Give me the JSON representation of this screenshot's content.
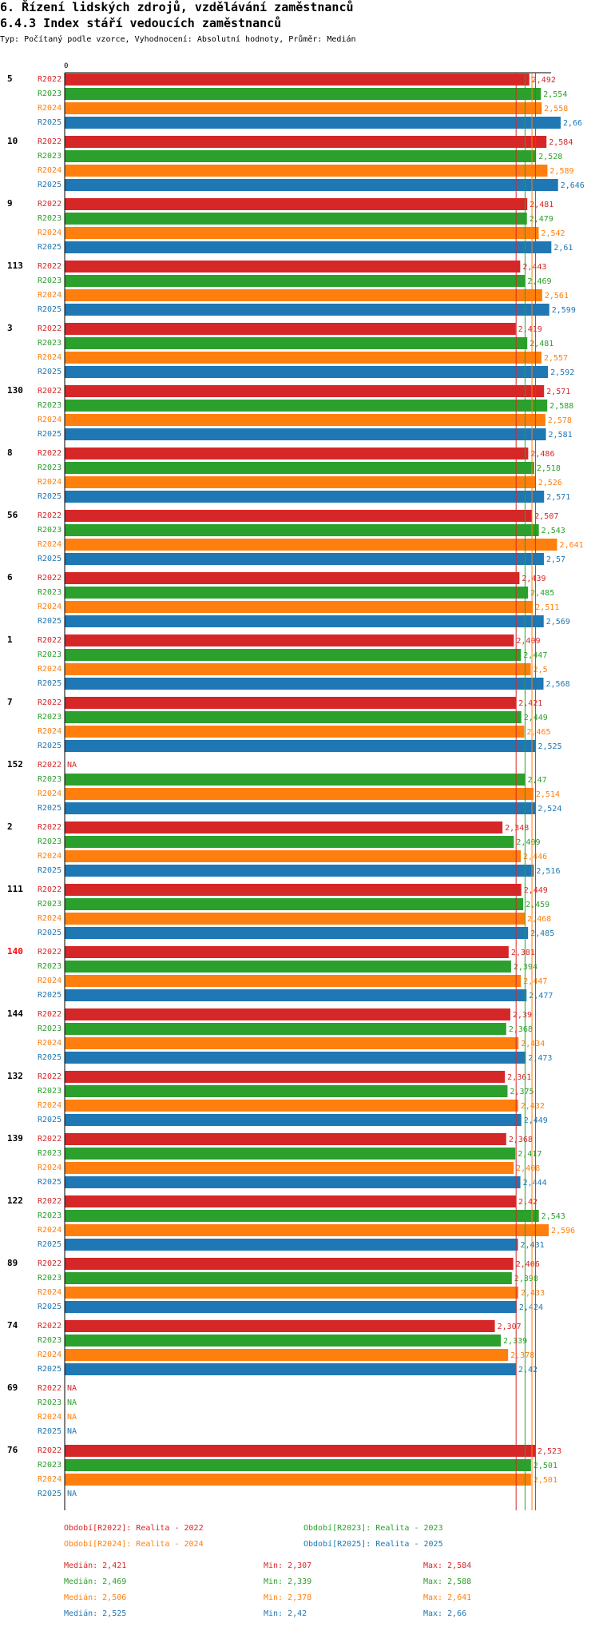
{
  "header": {
    "title1": "6. Řízení lidských zdrojů, vzdělávání zaměstnanců",
    "title2": "6.4.3 Index stáří vedoucích zaměstnanců",
    "subtitle": "Typ: Počítaný podle vzorce, Vyhodnocení: Absolutní hodnoty, Průměr: Medián"
  },
  "colors": {
    "R2022": "#d62728",
    "R2023": "#2ca02c",
    "R2024": "#ff7f0e",
    "R2025": "#1f77b4",
    "highlight": "#ff0000"
  },
  "chart_data": {
    "type": "bar",
    "orientation": "horizontal",
    "axis_zero_label": "0",
    "x_max": 2.75,
    "na_label": "NA",
    "series_names": [
      "R2022",
      "R2023",
      "R2024",
      "R2025"
    ],
    "groups": [
      {
        "id": "5",
        "values": [
          "2,492",
          "2,554",
          "2,558",
          "2,66"
        ]
      },
      {
        "id": "10",
        "values": [
          "2,584",
          "2,528",
          "2,589",
          "2,646"
        ]
      },
      {
        "id": "9",
        "values": [
          "2,481",
          "2,479",
          "2,542",
          "2,61"
        ]
      },
      {
        "id": "113",
        "values": [
          "2,443",
          "2,469",
          "2,561",
          "2,599"
        ]
      },
      {
        "id": "3",
        "values": [
          "2,419",
          "2,481",
          "2,557",
          "2,592"
        ]
      },
      {
        "id": "130",
        "values": [
          "2,571",
          "2,588",
          "2,578",
          "2,581"
        ]
      },
      {
        "id": "8",
        "values": [
          "2,486",
          "2,518",
          "2,526",
          "2,571"
        ]
      },
      {
        "id": "56",
        "values": [
          "2,507",
          "2,543",
          "2,641",
          "2,57"
        ]
      },
      {
        "id": "6",
        "values": [
          "2,439",
          "2,485",
          "2,511",
          "2,569"
        ]
      },
      {
        "id": "1",
        "values": [
          "2,409",
          "2,447",
          "2,5",
          "2,568"
        ]
      },
      {
        "id": "7",
        "values": [
          "2,421",
          "2,449",
          "2,465",
          "2,525"
        ]
      },
      {
        "id": "152",
        "values": [
          null,
          "2,47",
          "2,514",
          "2,524"
        ]
      },
      {
        "id": "2",
        "values": [
          "2,348",
          "2,409",
          "2,446",
          "2,516"
        ]
      },
      {
        "id": "111",
        "values": [
          "2,449",
          "2,459",
          "2,468",
          "2,485"
        ]
      },
      {
        "id": "140",
        "highlight": true,
        "values": [
          "2,381",
          "2,394",
          "2,447",
          "2,477"
        ]
      },
      {
        "id": "144",
        "values": [
          "2,39",
          "2,368",
          "2,434",
          "2,473"
        ]
      },
      {
        "id": "132",
        "values": [
          "2,361",
          "2,375",
          "2,432",
          "2,449"
        ]
      },
      {
        "id": "139",
        "values": [
          "2,368",
          "2,417",
          "2,408",
          "2,444"
        ]
      },
      {
        "id": "122",
        "values": [
          "2,42",
          "2,543",
          "2,596",
          "2,431"
        ]
      },
      {
        "id": "89",
        "values": [
          "2,406",
          "2,398",
          "2,433",
          "2,424"
        ]
      },
      {
        "id": "74",
        "values": [
          "2,307",
          "2,339",
          "2,378",
          "2,42"
        ]
      },
      {
        "id": "69",
        "values": [
          null,
          null,
          null,
          null
        ]
      },
      {
        "id": "76",
        "values": [
          "2,523",
          "2,501",
          "2,501",
          null
        ]
      }
    ],
    "median_lines": [
      2.421,
      2.469,
      2.506,
      2.525
    ],
    "legend": [
      "Období[R2022]: Realita - 2022",
      "Období[R2023]: Realita - 2023",
      "Období[R2024]: Realita - 2024",
      "Období[R2025]: Realita - 2025"
    ],
    "stats": [
      {
        "median": "Medián: 2,421",
        "min": "Min: 2,307",
        "max": "Max: 2,584"
      },
      {
        "median": "Medián: 2,469",
        "min": "Min: 2,339",
        "max": "Max: 2,588"
      },
      {
        "median": "Medián: 2,506",
        "min": "Min: 2,378",
        "max": "Max: 2,641"
      },
      {
        "median": "Medián: 2,525",
        "min": "Min: 2,42",
        "max": "Max: 2,66"
      }
    ]
  }
}
